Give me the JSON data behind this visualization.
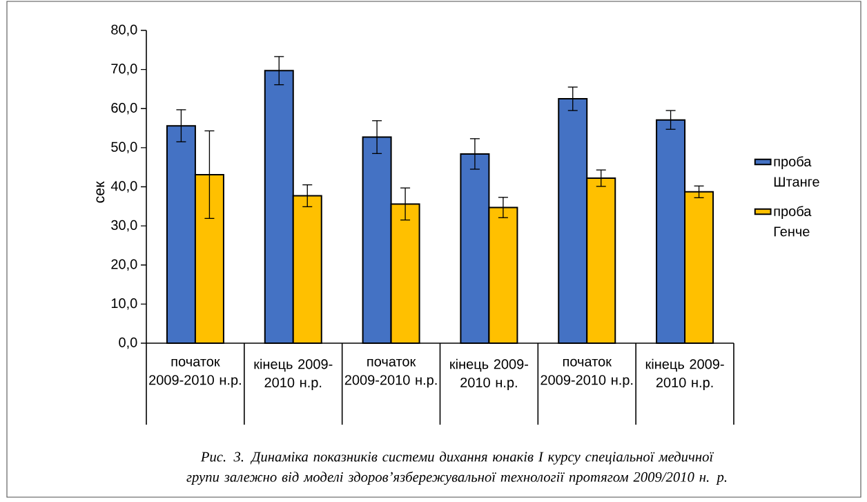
{
  "chart_data": {
    "type": "bar",
    "ylabel": "сек",
    "categories": [
      "початок 2009-2010 н.р.",
      "кінець 2009-2010 н.р.",
      "початок 2009-2010 н.р.",
      "кінець 2009-2010 н.р.",
      "початок 2009-2010 н.р.",
      "кінець 2009-2010 н.р."
    ],
    "series": [
      {
        "name": "проба Штанге",
        "color": "#4472c4",
        "values": [
          55.6,
          69.7,
          52.7,
          48.4,
          62.5,
          57.1
        ],
        "errors": [
          4.1,
          3.6,
          4.2,
          3.9,
          3.0,
          2.4
        ]
      },
      {
        "name": "проба Генче",
        "color": "#ffc000",
        "values": [
          43.1,
          37.7,
          35.6,
          34.7,
          42.2,
          38.7
        ],
        "errors": [
          11.2,
          2.8,
          4.1,
          2.6,
          2.1,
          1.5
        ]
      }
    ],
    "ylim": [
      0,
      80
    ],
    "yticks": [
      {
        "value": 0,
        "label": "0,0"
      },
      {
        "value": 10,
        "label": "10,0"
      },
      {
        "value": 20,
        "label": "20,0"
      },
      {
        "value": 30,
        "label": "30,0"
      },
      {
        "value": 40,
        "label": "40,0"
      },
      {
        "value": 50,
        "label": "50,0"
      },
      {
        "value": 60,
        "label": "60,0"
      },
      {
        "value": 70,
        "label": "70,0"
      },
      {
        "value": 80,
        "label": "80,0"
      }
    ],
    "grid": false,
    "legend": "right",
    "annotations": [
      "Рис. 3. Динаміка показників системи дихання юнаків I курсу спеціальної медичної групи залежно від моделі здоров’язбережувальної технології протягом 2009/2010 н. р."
    ]
  }
}
